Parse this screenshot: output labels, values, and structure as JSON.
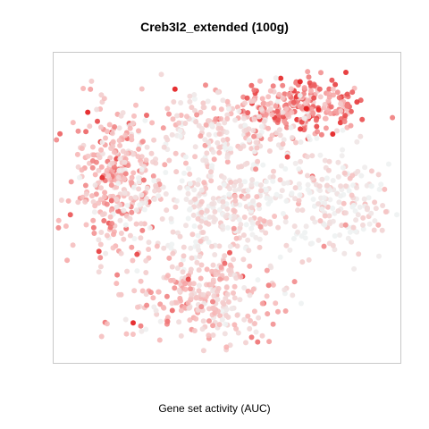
{
  "chart_data": {
    "type": "scatter",
    "title": "Creb3l2_extended (100g)",
    "xlabel": "Gene set activity (AUC)",
    "ylabel": "",
    "grid": false,
    "legend": "none",
    "xlim": [
      0,
      100
    ],
    "ylim": [
      0,
      100
    ],
    "color_scale": {
      "low": "#eef2f2",
      "mid": "#f7b4b4",
      "high": "#e31a1c",
      "min": 0,
      "max": 1
    },
    "clusters": [
      {
        "name": "top-right",
        "cx": 72,
        "cy": 85,
        "sx": 10,
        "sy": 5,
        "n": 260,
        "activity": 0.62
      },
      {
        "name": "top-center",
        "cx": 48,
        "cy": 78,
        "sx": 12,
        "sy": 6,
        "n": 180,
        "activity": 0.25
      },
      {
        "name": "left",
        "cx": 16,
        "cy": 60,
        "sx": 7,
        "sy": 14,
        "n": 300,
        "activity": 0.45
      },
      {
        "name": "center",
        "cx": 48,
        "cy": 53,
        "sx": 14,
        "sy": 10,
        "n": 380,
        "activity": 0.17
      },
      {
        "name": "right",
        "cx": 84,
        "cy": 54,
        "sx": 8,
        "sy": 8,
        "n": 170,
        "activity": 0.12
      },
      {
        "name": "bottom-center",
        "cx": 44,
        "cy": 21,
        "sx": 12,
        "sy": 8,
        "n": 280,
        "activity": 0.36
      }
    ],
    "hot_points": [
      {
        "x": 34,
        "y": 91,
        "value": 1.0
      },
      {
        "x": 12,
        "y": 61,
        "value": 0.95
      },
      {
        "x": 11,
        "y": 36,
        "value": 0.9
      },
      {
        "x": 68,
        "y": 68,
        "value": 0.9
      },
      {
        "x": 76,
        "y": 88,
        "value": 0.85
      },
      {
        "x": 56,
        "y": 83,
        "value": 0.8
      }
    ]
  }
}
